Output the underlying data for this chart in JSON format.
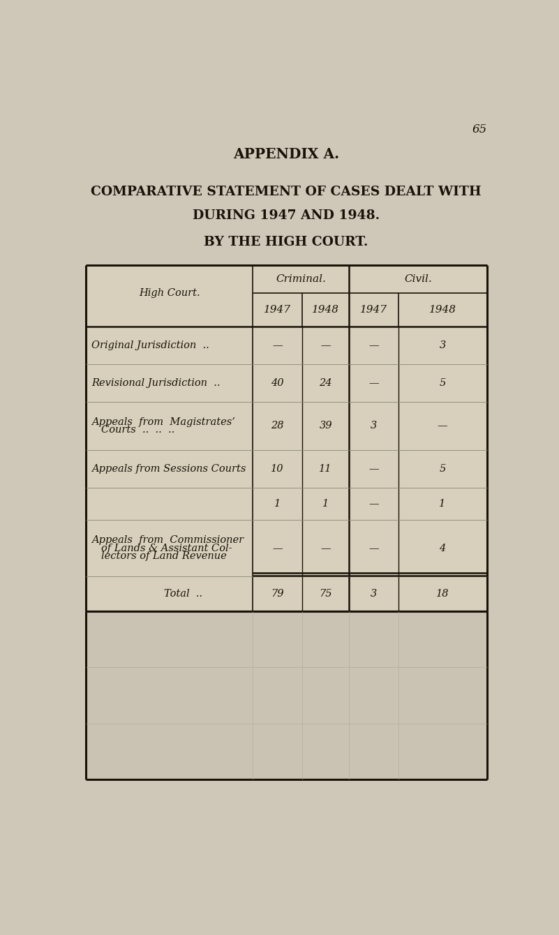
{
  "page_number": "65",
  "page_bg": "#cfc8b8",
  "table_bg": "#d8d0bc",
  "title1": "APPENDIX A.",
  "title2": "COMPARATIVE STATEMENT OF CASES DEALT WITH",
  "title3": "DURING 1947 AND 1948.",
  "title4": "BY THE HIGH COURT.",
  "header_col1": "High Court.",
  "header_criminal": "Criminal.",
  "header_civil": "Civil.",
  "col_years": [
    "1947",
    "1948",
    "1947",
    "1948"
  ],
  "rows": [
    {
      "label_lines": [
        "Original Jurisdiction  .."
      ],
      "label_indent": [
        0
      ],
      "data": [
        "—",
        "—",
        "—",
        "3"
      ]
    },
    {
      "label_lines": [
        "Revisional Jurisdiction  .."
      ],
      "label_indent": [
        0
      ],
      "data": [
        "40",
        "24",
        "—",
        "5"
      ]
    },
    {
      "label_lines": [
        "Appeals  from  Magistrates’",
        "Courts  ..  ..  .."
      ],
      "label_indent": [
        0,
        1
      ],
      "data": [
        "28",
        "39",
        "3",
        "—"
      ]
    },
    {
      "label_lines": [
        "Appeals from Sessions Courts"
      ],
      "label_indent": [
        0
      ],
      "data": [
        "10",
        "11",
        "—",
        "5"
      ]
    },
    {
      "label_lines": [
        ""
      ],
      "label_indent": [
        0
      ],
      "data": [
        "1",
        "1",
        "—",
        "1"
      ]
    },
    {
      "label_lines": [
        "Appeals  from  Commissioner",
        "of Lands & Assistant Col-",
        "lectors of Land Revenue"
      ],
      "label_indent": [
        0,
        1,
        1
      ],
      "data": [
        "—",
        "—",
        "—",
        "4"
      ]
    }
  ],
  "total_label": "Total  ..",
  "total_data": [
    "79",
    "75",
    "3",
    "18"
  ],
  "font_color": "#1a1209",
  "line_color": "#1a1209"
}
